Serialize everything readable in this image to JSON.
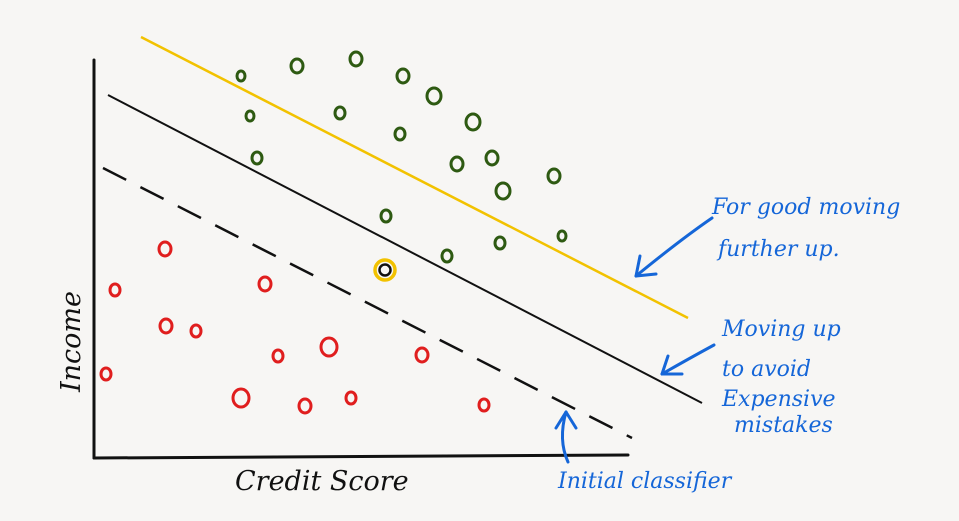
{
  "axes": {
    "x_label": "Credit Score",
    "y_label": "Income"
  },
  "lines": {
    "initial": {
      "style": "dashed",
      "color": "#111111"
    },
    "moved": {
      "style": "solid",
      "color": "#111111"
    },
    "good_side": {
      "style": "solid",
      "color": "#f2c200"
    }
  },
  "annotations": {
    "yellow_line": [
      "For good moving",
      "further up."
    ],
    "black_line": [
      "Moving up",
      "to avoid",
      "Expensive",
      "mistakes"
    ],
    "dashed_line": [
      "Initial classifier"
    ]
  },
  "colors": {
    "green_points": "#2e5a12",
    "red_points": "#e01e1e",
    "highlight_ring": "#f2c200",
    "annotation_ink": "#1566d8",
    "axis": "#111111"
  },
  "point_counts": {
    "green": 21,
    "red": 15,
    "highlighted": 1
  }
}
